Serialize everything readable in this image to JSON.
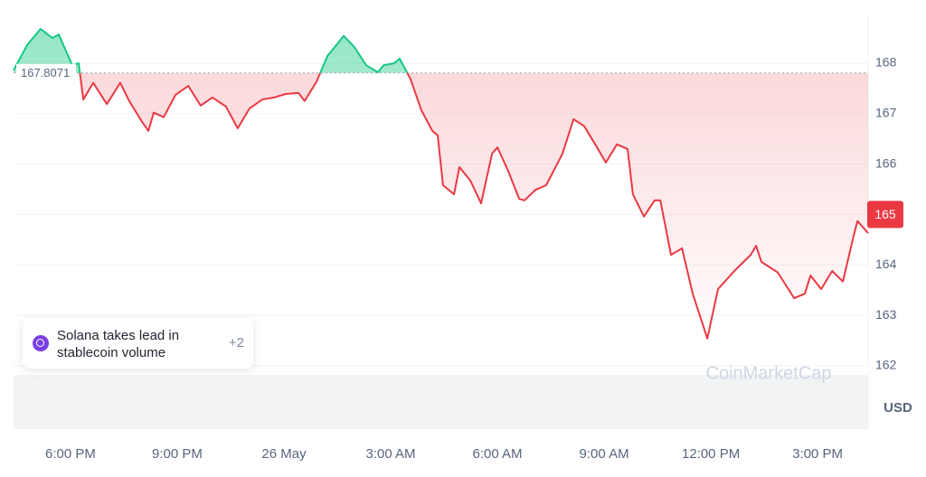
{
  "chart_data": {
    "type": "line",
    "x": [
      -7.6,
      -7.22,
      -6.84,
      -6.51,
      -6.33,
      -5.95,
      -5.77,
      -5.64,
      -5.36,
      -4.98,
      -4.6,
      -4.35,
      -3.99,
      -3.81,
      -3.66,
      -3.38,
      -3.05,
      -2.69,
      -2.34,
      -2.01,
      -1.63,
      -1.3,
      -0.97,
      -0.61,
      -0.28,
      0.05,
      0.41,
      0.58,
      0.92,
      1.22,
      1.68,
      1.98,
      2.31,
      2.64,
      2.8,
      3.1,
      3.25,
      3.56,
      3.86,
      4.17,
      4.32,
      4.47,
      4.78,
      4.93,
      5.24,
      5.54,
      5.85,
      6.0,
      6.31,
      6.61,
      6.76,
      7.07,
      7.37,
      7.83,
      8.14,
      8.44,
      8.75,
      9.05,
      9.36,
      9.66,
      9.81,
      10.12,
      10.42,
      10.58,
      10.88,
      11.19,
      11.49,
      11.9,
      12.2,
      12.66,
      13.12,
      13.27,
      13.42,
      13.88,
      14.34,
      14.64,
      14.8,
      15.1,
      15.41,
      15.71,
      16.02,
      16.12,
      16.42
    ],
    "y": [
      167.86,
      168.36,
      168.68,
      168.5,
      168.57,
      167.96,
      168.0,
      167.28,
      167.61,
      167.19,
      167.61,
      167.25,
      166.84,
      166.66,
      167.02,
      166.93,
      167.37,
      167.55,
      167.16,
      167.32,
      167.14,
      166.71,
      167.1,
      167.28,
      167.32,
      167.39,
      167.41,
      167.25,
      167.64,
      168.14,
      168.54,
      168.32,
      167.96,
      167.82,
      167.96,
      168.0,
      168.09,
      167.68,
      167.07,
      166.66,
      166.57,
      165.58,
      165.4,
      165.94,
      165.67,
      165.22,
      166.21,
      166.33,
      165.85,
      165.31,
      165.28,
      165.49,
      165.58,
      166.21,
      166.89,
      166.75,
      166.39,
      166.03,
      166.39,
      166.3,
      165.4,
      164.96,
      165.28,
      165.28,
      164.2,
      164.33,
      163.43,
      162.54,
      163.52,
      163.88,
      164.2,
      164.38,
      164.06,
      163.85,
      163.34,
      163.43,
      163.79,
      163.52,
      163.88,
      163.67,
      164.6,
      164.87,
      164.63
    ],
    "up_color": "#16c784",
    "down_color": "#ea3943",
    "baseline": 167.8071,
    "last_price": 165,
    "xlim": [
      -7.6,
      16.42
    ],
    "ylim": [
      161.55,
      168.99
    ],
    "xticks": [
      {
        "value": -6,
        "label": "6:00 PM"
      },
      {
        "value": -3,
        "label": "9:00 PM"
      },
      {
        "value": 0,
        "label": "26 May"
      },
      {
        "value": 3,
        "label": "3:00 AM"
      },
      {
        "value": 6,
        "label": "6:00 AM"
      },
      {
        "value": 9,
        "label": "9:00 AM"
      },
      {
        "value": 12,
        "label": "12:00 PM"
      },
      {
        "value": 15,
        "label": "3:00 PM"
      }
    ],
    "yticks": [
      162,
      163,
      164,
      165,
      166,
      167,
      168
    ],
    "y_axis_label": "USD",
    "grid": true,
    "watermark": "CoinMarketCap",
    "annotation": {
      "text": "Solana takes lead in stablecoin volume",
      "count": "+2"
    }
  }
}
